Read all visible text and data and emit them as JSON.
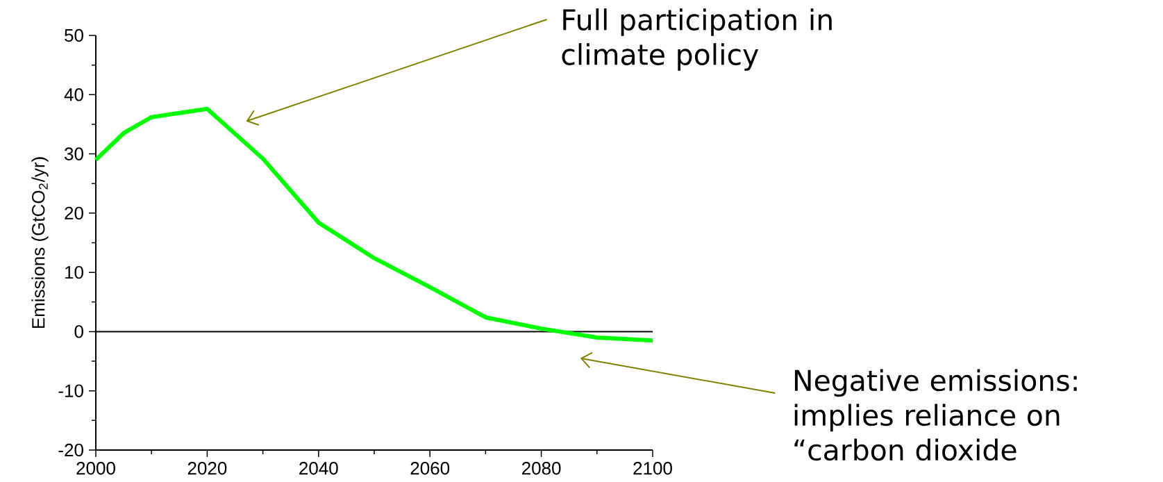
{
  "chart_data": {
    "type": "line",
    "ylabel": "Emissions (GtCO$_{2}$/yr)",
    "x": [
      2000,
      2005,
      2010,
      2020,
      2030,
      2040,
      2050,
      2060,
      2070,
      2080,
      2090,
      2100
    ],
    "series": [
      {
        "color": "#00ff00",
        "values": [
          29,
          33.5,
          36.2,
          37.6,
          29.2,
          18.4,
          12.4,
          7.5,
          2.4,
          0.5,
          -1,
          -1.5
        ]
      }
    ],
    "xlim": [
      2000,
      2100
    ],
    "ylim": [
      -20,
      50
    ],
    "xticks": [
      2000,
      2020,
      2040,
      2060,
      2080,
      2100
    ],
    "yticks": [
      -20,
      -10,
      0,
      10,
      20,
      30,
      40,
      50
    ],
    "marker": "none",
    "line_style": "solid",
    "ref_lines": [
      {
        "axis": "y",
        "value": 0,
        "color": "#000000"
      }
    ],
    "annotations": [
      "Full participation in climate policy",
      "Negative emissions: implies reliance on “carbon dioxide"
    ]
  }
}
